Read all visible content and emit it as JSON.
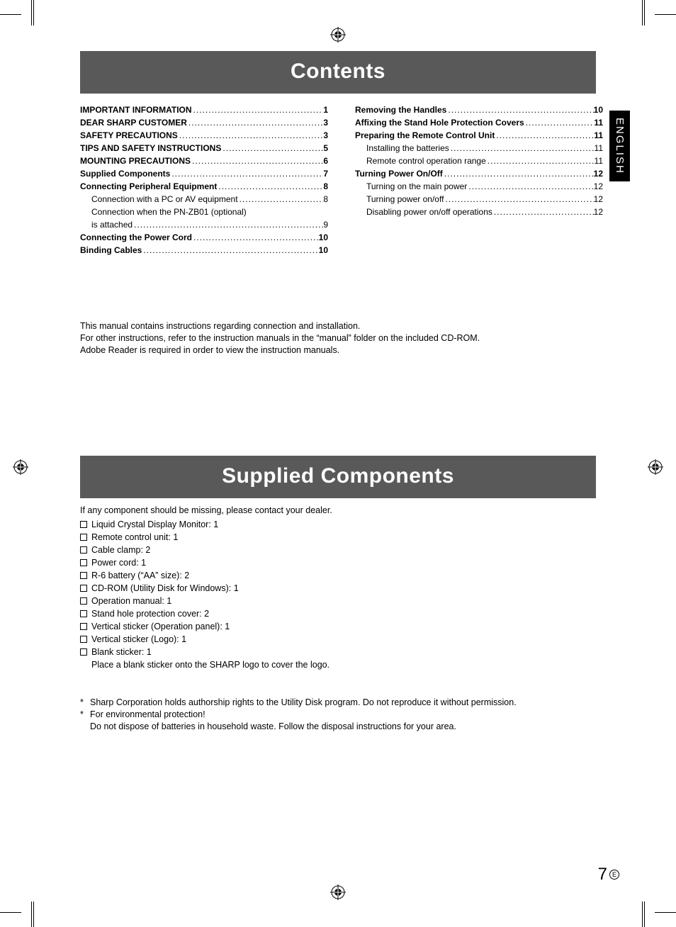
{
  "language_tab": "ENGLISH",
  "page_number": "7",
  "page_suffix": "E",
  "colors": {
    "header_bg": "#595959",
    "header_fg": "#ffffff",
    "lang_tab_bg": "#000000",
    "lang_tab_fg": "#ffffff",
    "text": "#000000",
    "page_bg": "#ffffff"
  },
  "sections": {
    "contents_title": "Contents",
    "supplied_title": "Supplied Components"
  },
  "toc_left": [
    {
      "label": "IMPORTANT INFORMATION",
      "page": "1",
      "bold": true
    },
    {
      "label": "DEAR SHARP CUSTOMER",
      "page": "3",
      "bold": true
    },
    {
      "label": "SAFETY PRECAUTIONS",
      "page": "3",
      "bold": true
    },
    {
      "label": "TIPS AND SAFETY INSTRUCTIONS",
      "page": "5",
      "bold": true
    },
    {
      "label": "MOUNTING PRECAUTIONS",
      "page": "6",
      "bold": true
    },
    {
      "label": "Supplied Components",
      "page": "7",
      "bold": true
    },
    {
      "label": "Connecting Peripheral Equipment",
      "page": "8",
      "bold": true
    },
    {
      "label": "Connection with a PC or AV equipment",
      "page": "8",
      "sub": true
    },
    {
      "label_wrap1": "Connection when the PN-ZB01 (optional)",
      "label_wrap2": "is attached",
      "page": "9",
      "sub": true
    },
    {
      "label": "Connecting the Power Cord",
      "page": "10",
      "bold": true
    },
    {
      "label": "Binding Cables",
      "page": "10",
      "bold": true
    }
  ],
  "toc_right": [
    {
      "label": "Removing the Handles",
      "page": "10",
      "bold": true
    },
    {
      "label": "Affixing the Stand Hole Protection Covers",
      "page": "11",
      "bold": true
    },
    {
      "label": "Preparing the Remote Control Unit",
      "page": "11",
      "bold": true
    },
    {
      "label": "Installing the batteries",
      "page": "11",
      "sub": true
    },
    {
      "label": "Remote control operation range",
      "page": "11",
      "sub": true
    },
    {
      "label": "Turning Power On/Off",
      "page": "12",
      "bold": true
    },
    {
      "label": "Turning on the main power",
      "page": "12",
      "sub": true
    },
    {
      "label": "Turning power on/off",
      "page": "12",
      "sub": true
    },
    {
      "label": "Disabling power on/off operations",
      "page": "12",
      "sub": true
    }
  ],
  "note_lines": [
    "This manual contains instructions regarding connection and installation.",
    "For other instructions, refer to the instruction manuals in the “manual” folder on the included CD-ROM.",
    "Adobe Reader is required in order to view the instruction manuals."
  ],
  "components_intro": "If any component should be missing, please contact your dealer.",
  "components": [
    "Liquid Crystal Display Monitor: 1",
    "Remote control unit: 1",
    "Cable clamp: 2",
    "Power cord: 1",
    "R-6 battery (“AA” size): 2",
    "CD-ROM (Utility Disk for Windows): 1",
    "Operation manual: 1",
    "Stand hole protection cover: 2",
    "Vertical sticker (Operation panel): 1",
    "Vertical sticker (Logo): 1",
    "Blank sticker: 1"
  ],
  "components_sub": "Place a blank sticker onto the SHARP logo to cover the logo.",
  "footnotes": [
    "Sharp Corporation holds authorship rights to the Utility Disk program. Do not reproduce it without permission.",
    "For environmental protection!\nDo not dispose of batteries in household waste. Follow the disposal instructions for your area."
  ]
}
